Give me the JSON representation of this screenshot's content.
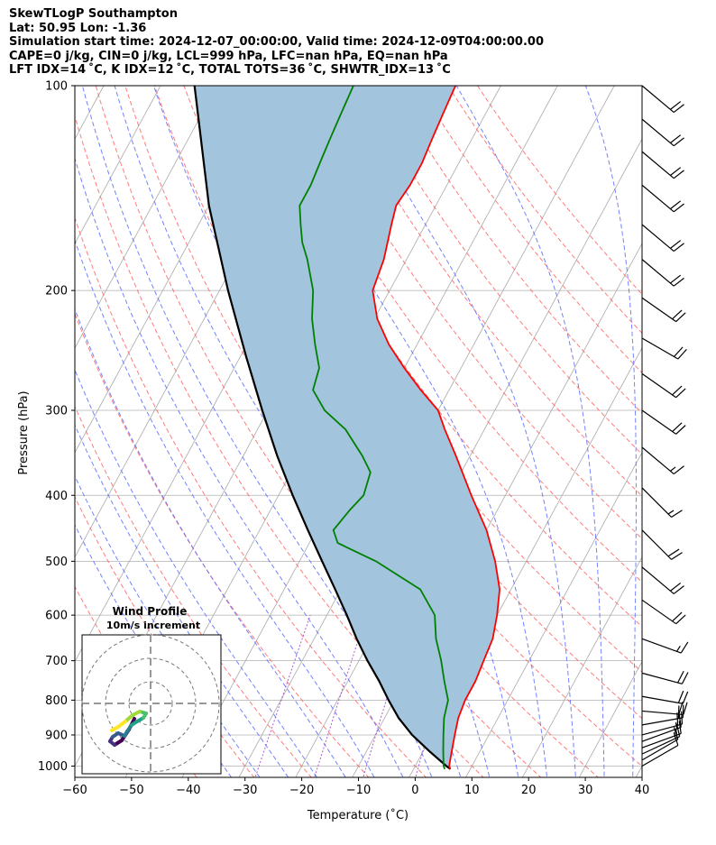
{
  "header": {
    "title": "SkewTLogP Southampton",
    "location": "Lat: 50.95   Lon: -1.36",
    "times": "Simulation start time: 2024-12-07_00:00:00, Valid time: 2024-12-09T04:00:00.00",
    "indices1": "CAPE=0 j/kg, CIN=0 j/kg, LCL=999 hPa, LFC=nan hPa, EQ=nan hPa",
    "indices2": "LFT IDX=14 ˚C, K IDX=12 ˚C, TOTAL TOTS=36 ˚C, SHWTR_IDX=13 ˚C"
  },
  "chart_data": {
    "type": "skewt-logp",
    "xlabel": "Temperature (˚C)",
    "ylabel": "Pressure (hPa)",
    "xlim": [
      -60,
      40
    ],
    "ylim": [
      1050,
      100
    ],
    "x_ticks": [
      -60,
      -50,
      -40,
      -30,
      -20,
      -10,
      0,
      10,
      20,
      30,
      40
    ],
    "y_ticks": [
      1000,
      900,
      800,
      700,
      600,
      500,
      400,
      300,
      200,
      100
    ],
    "grid": true,
    "colors": {
      "temperature": "#ff0000",
      "dewpoint": "#008000",
      "parcel": "#000000",
      "cape_fill": "#a2c4dd",
      "dry_adiabat": "#ff6464",
      "moist_adiabat": "#5a6cff",
      "mixing_ratio": "#9932cc",
      "isotherm": "#aaaaaa"
    },
    "series": [
      {
        "key": "temperature",
        "points": [
          [
            1010,
            6.5
          ],
          [
            1000,
            6.0
          ],
          [
            950,
            5.0
          ],
          [
            900,
            4.0
          ],
          [
            850,
            3.0
          ],
          [
            800,
            2.5
          ],
          [
            750,
            2.5
          ],
          [
            700,
            2.0
          ],
          [
            650,
            1.5
          ],
          [
            600,
            0.0
          ],
          [
            550,
            -2.0
          ],
          [
            500,
            -5.5
          ],
          [
            450,
            -10.0
          ],
          [
            400,
            -16.0
          ],
          [
            350,
            -22.5
          ],
          [
            320,
            -27.0
          ],
          [
            300,
            -30.0
          ],
          [
            280,
            -35.0
          ],
          [
            260,
            -40.0
          ],
          [
            240,
            -45.0
          ],
          [
            220,
            -49.5
          ],
          [
            200,
            -53.0
          ],
          [
            180,
            -54.0
          ],
          [
            160,
            -56.0
          ],
          [
            150,
            -57.0
          ],
          [
            140,
            -56.5
          ],
          [
            130,
            -56.5
          ],
          [
            120,
            -57.0
          ],
          [
            110,
            -57.5
          ],
          [
            100,
            -58.0
          ]
        ]
      },
      {
        "key": "dewpoint",
        "points": [
          [
            1010,
            5.5
          ],
          [
            1000,
            5.0
          ],
          [
            950,
            3.5
          ],
          [
            900,
            2.0
          ],
          [
            850,
            0.5
          ],
          [
            800,
            -0.5
          ],
          [
            750,
            -3.0
          ],
          [
            700,
            -5.5
          ],
          [
            650,
            -8.5
          ],
          [
            600,
            -11.0
          ],
          [
            550,
            -16.0
          ],
          [
            500,
            -26.5
          ],
          [
            470,
            -35.0
          ],
          [
            450,
            -37.0
          ],
          [
            420,
            -36.0
          ],
          [
            400,
            -35.0
          ],
          [
            370,
            -36.0
          ],
          [
            350,
            -39.0
          ],
          [
            320,
            -44.5
          ],
          [
            300,
            -50.0
          ],
          [
            280,
            -54.0
          ],
          [
            260,
            -55.0
          ],
          [
            240,
            -58.0
          ],
          [
            220,
            -61.0
          ],
          [
            200,
            -63.5
          ],
          [
            180,
            -67.5
          ],
          [
            170,
            -70.0
          ],
          [
            160,
            -72.0
          ],
          [
            150,
            -74.0
          ],
          [
            140,
            -74.0
          ],
          [
            130,
            -74.5
          ],
          [
            120,
            -75.0
          ],
          [
            110,
            -75.5
          ],
          [
            100,
            -76.0
          ]
        ]
      },
      {
        "key": "parcel",
        "points": [
          [
            1010,
            6.5
          ],
          [
            1000,
            5.5
          ],
          [
            950,
            1.0
          ],
          [
            900,
            -3.5
          ],
          [
            850,
            -7.5
          ],
          [
            800,
            -11.0
          ],
          [
            750,
            -14.5
          ],
          [
            700,
            -18.5
          ],
          [
            650,
            -22.5
          ],
          [
            600,
            -26.5
          ],
          [
            550,
            -31.0
          ],
          [
            500,
            -36.0
          ],
          [
            450,
            -41.5
          ],
          [
            400,
            -47.5
          ],
          [
            350,
            -54.0
          ],
          [
            300,
            -61.0
          ],
          [
            250,
            -69.0
          ],
          [
            200,
            -78.5
          ],
          [
            150,
            -90.0
          ],
          [
            100,
            -104.0
          ]
        ]
      }
    ],
    "wind_barbs": [
      {
        "p": 1000,
        "speed_kt": 10,
        "dir_deg": 60
      },
      {
        "p": 980,
        "speed_kt": 10,
        "dir_deg": 60
      },
      {
        "p": 960,
        "speed_kt": 15,
        "dir_deg": 65
      },
      {
        "p": 940,
        "speed_kt": 15,
        "dir_deg": 70
      },
      {
        "p": 920,
        "speed_kt": 15,
        "dir_deg": 70
      },
      {
        "p": 900,
        "speed_kt": 20,
        "dir_deg": 75
      },
      {
        "p": 870,
        "speed_kt": 20,
        "dir_deg": 80
      },
      {
        "p": 830,
        "speed_kt": 20,
        "dir_deg": 95
      },
      {
        "p": 790,
        "speed_kt": 20,
        "dir_deg": 100
      },
      {
        "p": 730,
        "speed_kt": 20,
        "dir_deg": 105
      },
      {
        "p": 650,
        "speed_kt": 15,
        "dir_deg": 110
      },
      {
        "p": 570,
        "speed_kt": 20,
        "dir_deg": 125
      },
      {
        "p": 510,
        "speed_kt": 20,
        "dir_deg": 130
      },
      {
        "p": 450,
        "speed_kt": 20,
        "dir_deg": 135
      },
      {
        "p": 390,
        "speed_kt": 15,
        "dir_deg": 135
      },
      {
        "p": 340,
        "speed_kt": 15,
        "dir_deg": 130
      },
      {
        "p": 300,
        "speed_kt": 20,
        "dir_deg": 125
      },
      {
        "p": 265,
        "speed_kt": 20,
        "dir_deg": 125
      },
      {
        "p": 235,
        "speed_kt": 20,
        "dir_deg": 120
      },
      {
        "p": 205,
        "speed_kt": 20,
        "dir_deg": 125
      },
      {
        "p": 180,
        "speed_kt": 20,
        "dir_deg": 130
      },
      {
        "p": 160,
        "speed_kt": 20,
        "dir_deg": 130
      },
      {
        "p": 140,
        "speed_kt": 20,
        "dir_deg": 130
      },
      {
        "p": 125,
        "speed_kt": 20,
        "dir_deg": 130
      },
      {
        "p": 112,
        "speed_kt": 20,
        "dir_deg": 130
      },
      {
        "p": 100,
        "speed_kt": 20,
        "dir_deg": 130
      }
    ]
  },
  "inset": {
    "title": "Wind Profile",
    "subtitle": "10m/s increment",
    "hodograph_points": [
      [
        -1.8,
        -1.7
      ],
      [
        -2.4,
        -2.9
      ],
      [
        -3.2,
        -4.1
      ],
      [
        -4.0,
        -4.6
      ],
      [
        -4.5,
        -4.2
      ],
      [
        -4.2,
        -3.7
      ],
      [
        -3.6,
        -3.3
      ],
      [
        -2.9,
        -3.6
      ],
      [
        -2.6,
        -3.1
      ],
      [
        -2.1,
        -2.4
      ],
      [
        -1.5,
        -2.0
      ],
      [
        -0.8,
        -1.6
      ],
      [
        -0.5,
        -1.1
      ],
      [
        -1.2,
        -0.9
      ],
      [
        -2.0,
        -1.3
      ],
      [
        -2.8,
        -2.0
      ],
      [
        -3.6,
        -2.6
      ],
      [
        -4.3,
        -3.0
      ]
    ]
  }
}
